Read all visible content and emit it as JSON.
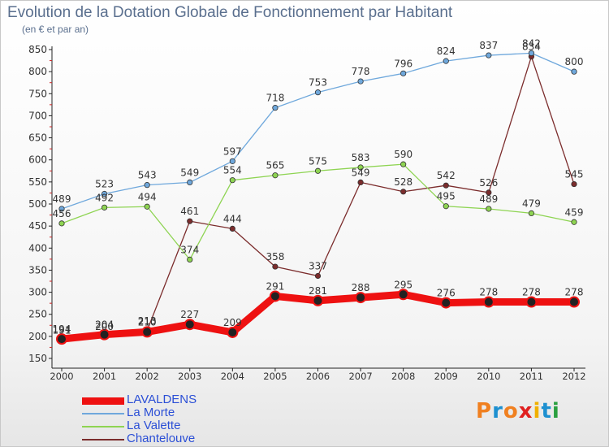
{
  "title": "Evolution de la Dotation Globale de Fonctionnement par Habitant",
  "subtitle": "(en € et par an)",
  "logo": {
    "letters": [
      "P",
      "r",
      "o",
      "x",
      "i",
      "t",
      "i"
    ],
    "colors": [
      "#f08020",
      "#1e90d0",
      "#f08020",
      "#e02020",
      "#f0b000",
      "#1e90d0",
      "#2aa040"
    ]
  },
  "chart_data": {
    "type": "line",
    "title": "Evolution de la Dotation Globale de Fonctionnement par Habitant",
    "subtitle": "(en € et par an)",
    "xlabel": "",
    "ylabel": "",
    "x": [
      "2000",
      "2001",
      "2002",
      "2003",
      "2004",
      "2005",
      "2006",
      "2007",
      "2008",
      "2009",
      "2010",
      "2011",
      "2012"
    ],
    "ylim": [
      150,
      850
    ],
    "yticks": [
      150,
      200,
      250,
      300,
      350,
      400,
      450,
      500,
      550,
      600,
      650,
      700,
      750,
      800,
      850
    ],
    "grid": false,
    "legend_position": "bottom-left",
    "series": [
      {
        "name": "LAVALDENS",
        "color": "#ee1111",
        "values": [
          194,
          204,
          210,
          227,
          209,
          291,
          281,
          288,
          295,
          276,
          278,
          278,
          278
        ]
      },
      {
        "name": "La Morte",
        "color": "#6fa8dc",
        "values": [
          489,
          523,
          543,
          549,
          597,
          718,
          753,
          778,
          796,
          824,
          837,
          842,
          800
        ]
      },
      {
        "name": "La Valette",
        "color": "#8ed452",
        "values": [
          456,
          492,
          494,
          374,
          554,
          565,
          575,
          583,
          590,
          495,
          489,
          479,
          459
        ]
      },
      {
        "name": "Chantelouve",
        "color": "#7b2c2c",
        "values": [
          191,
          200,
          213,
          461,
          444,
          358,
          337,
          549,
          528,
          542,
          526,
          834,
          545
        ]
      }
    ]
  }
}
